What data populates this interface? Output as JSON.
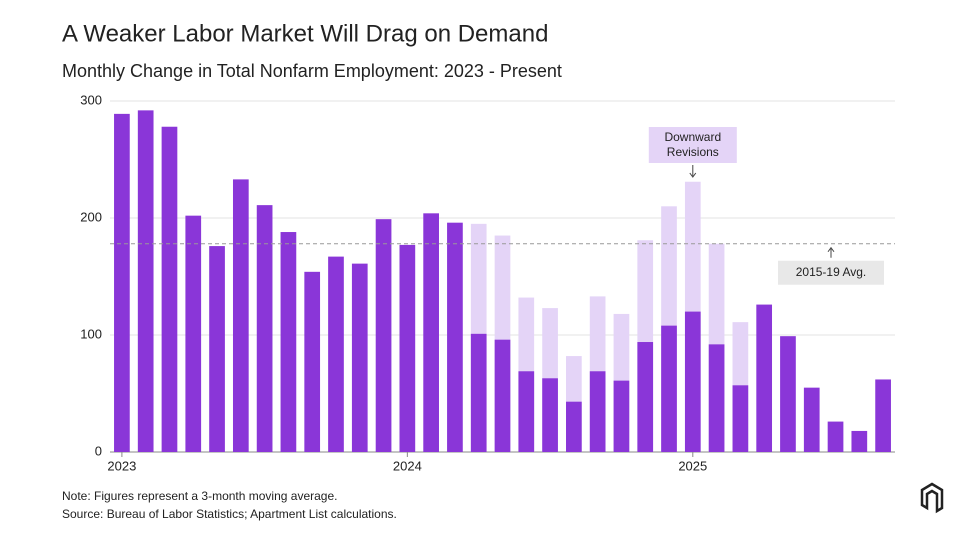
{
  "chart_data": {
    "type": "bar",
    "title": "A Weaker Labor Market Will Drag on Demand",
    "subtitle": "Monthly Change in Total Nonfarm Employment: 2023 - Present",
    "categories": [
      "2023",
      null,
      null,
      null,
      null,
      null,
      null,
      null,
      null,
      null,
      null,
      null,
      "2024",
      null,
      null,
      null,
      null,
      null,
      null,
      null,
      null,
      null,
      null,
      null,
      "2025",
      null,
      null,
      null,
      null,
      null,
      null,
      null,
      null
    ],
    "series": [
      {
        "color": "#e4d4f7",
        "values": [
          null,
          null,
          null,
          null,
          null,
          null,
          null,
          null,
          null,
          null,
          null,
          null,
          null,
          null,
          null,
          195,
          185,
          132,
          123,
          82,
          133,
          118,
          181,
          210,
          231,
          178,
          111,
          null,
          null,
          null,
          null,
          null,
          null
        ]
      },
      {
        "color": "#8a36d8",
        "values": [
          289,
          292,
          278,
          202,
          176,
          233,
          211,
          188,
          154,
          167,
          161,
          199,
          177,
          204,
          196,
          101,
          96,
          69,
          63,
          43,
          69,
          61,
          94,
          108,
          120,
          92,
          57,
          126,
          99,
          55,
          26,
          18,
          62
        ]
      }
    ],
    "ylim": [
      0,
      300
    ],
    "yticks": [
      0,
      100,
      200,
      300
    ],
    "grid": true,
    "reference_line": {
      "value": 178,
      "label": "2015-19 Avg."
    },
    "annotation": {
      "lines": [
        "Downward",
        "Revisions"
      ]
    },
    "notes": [
      "Note: Figures represent a 3-month moving average.",
      "Source: Bureau of Labor Statistics; Apartment List calculations."
    ]
  }
}
